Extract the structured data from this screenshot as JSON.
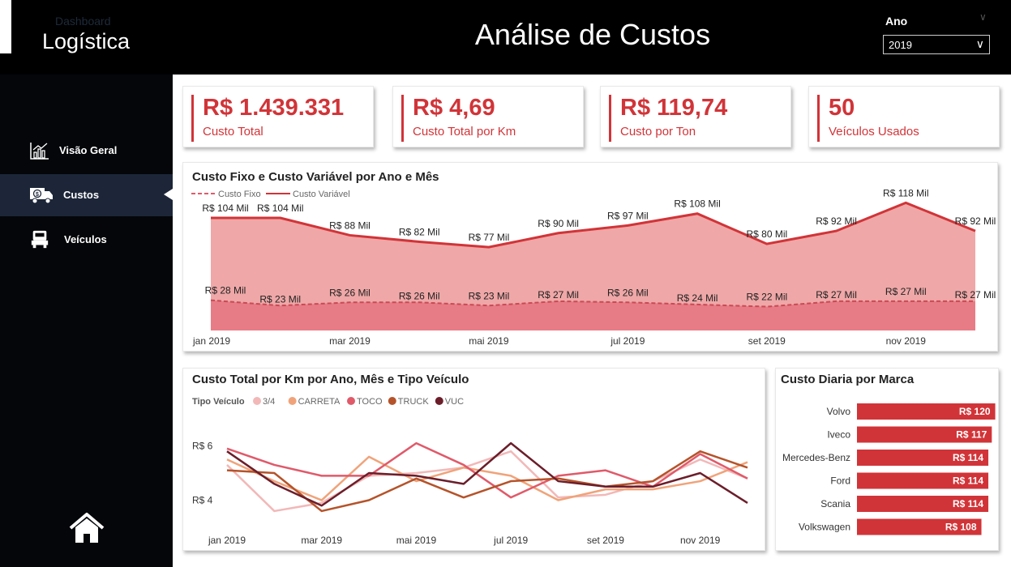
{
  "brand": {
    "small": "Dashboard",
    "big": "Logística"
  },
  "title": "Análise de Custos",
  "year_filter": {
    "label": "Ano",
    "value": "2019"
  },
  "colors": {
    "accent": "#d13438",
    "area": "#efa7a7",
    "sidebar_active": "#1c2638"
  },
  "nav": [
    {
      "label": "Visão Geral",
      "icon": "bar-chart-icon"
    },
    {
      "label": "Custos",
      "icon": "money-truck-icon"
    },
    {
      "label": "Veículos",
      "icon": "truck-icon"
    }
  ],
  "kpis": [
    {
      "value": "R$ 1.439.331",
      "label": "Custo Total"
    },
    {
      "value": "R$ 4,69",
      "label": "Custo Total por Km"
    },
    {
      "value": "R$ 119,74",
      "label": "Custo por Ton"
    },
    {
      "value": "50",
      "label": "Veículos Usados"
    }
  ],
  "chart_data": [
    {
      "type": "area",
      "title": "Custo Fixo e Custo Variável por Ano e Mês",
      "legend": [
        "Custo Fixo",
        "Custo Variável"
      ],
      "x": [
        "jan 2019",
        "fev 2019",
        "mar 2019",
        "abr 2019",
        "mai 2019",
        "jun 2019",
        "jul 2019",
        "ago 2019",
        "set 2019",
        "out 2019",
        "nov 2019",
        "dez 2019"
      ],
      "x_tick_labels": [
        "jan 2019",
        "mar 2019",
        "mai 2019",
        "jul 2019",
        "set 2019",
        "nov 2019"
      ],
      "series": [
        {
          "name": "Custo Variável",
          "values": [
            104,
            104,
            88,
            82,
            77,
            90,
            97,
            108,
            80,
            92,
            118,
            92
          ],
          "labels": [
            "R$ 104 Mil",
            "R$ 104 Mil",
            "R$ 88 Mil",
            "R$ 82 Mil",
            "R$ 77 Mil",
            "R$ 90 Mil",
            "R$ 97 Mil",
            "R$ 108 Mil",
            "R$ 80 Mil",
            "R$ 92 Mil",
            "R$ 118 Mil",
            "R$ 92 Mil"
          ]
        },
        {
          "name": "Custo Fixo",
          "values": [
            28,
            23,
            26,
            26,
            23,
            27,
            26,
            24,
            22,
            27,
            27,
            27
          ],
          "labels": [
            "R$ 28 Mil",
            "R$ 23 Mil",
            "R$ 26 Mil",
            "R$ 26 Mil",
            "R$ 23 Mil",
            "R$ 27 Mil",
            "R$ 26 Mil",
            "R$ 24 Mil",
            "R$ 22 Mil",
            "R$ 27 Mil",
            "R$ 27 Mil",
            "R$ 27 Mil"
          ]
        }
      ],
      "ylim": [
        0,
        125
      ]
    },
    {
      "type": "line",
      "title": "Custo Total por Km por Ano, Mês e Tipo Veículo",
      "legend_title": "Tipo Veículo",
      "x": [
        "jan 2019",
        "fev 2019",
        "mar 2019",
        "abr 2019",
        "mai 2019",
        "jun 2019",
        "jul 2019",
        "ago 2019",
        "set 2019",
        "out 2019",
        "nov 2019",
        "dez 2019"
      ],
      "x_tick_labels": [
        "jan 2019",
        "mar 2019",
        "mai 2019",
        "jul 2019",
        "set 2019",
        "nov 2019"
      ],
      "y_tick_labels": [
        "R$ 6",
        "R$ 4"
      ],
      "y_ticks": [
        6,
        4
      ],
      "ylim": [
        3.3,
        6.7
      ],
      "series": [
        {
          "name": "3/4",
          "color": "#f2b8b8",
          "values": [
            5.3,
            3.6,
            3.9,
            4.9,
            5.0,
            5.2,
            5.8,
            4.1,
            4.2,
            4.7,
            5.5,
            4.8
          ]
        },
        {
          "name": "CARRETA",
          "color": "#f0a37a",
          "values": [
            5.5,
            4.7,
            4.0,
            5.6,
            4.7,
            5.2,
            4.9,
            4.0,
            4.4,
            4.4,
            4.7,
            5.4
          ]
        },
        {
          "name": "TOCO",
          "color": "#e05a6a",
          "values": [
            5.9,
            5.3,
            4.9,
            4.9,
            6.1,
            5.3,
            4.1,
            4.9,
            5.1,
            4.5,
            5.7,
            4.8
          ]
        },
        {
          "name": "TRUCK",
          "color": "#b5532a",
          "values": [
            5.1,
            5.0,
            3.6,
            4.0,
            4.8,
            4.1,
            4.7,
            4.8,
            4.5,
            4.7,
            5.8,
            5.2
          ]
        },
        {
          "name": "VUC",
          "color": "#6b1e2a",
          "values": [
            5.8,
            4.6,
            3.8,
            5.0,
            4.9,
            4.6,
            6.1,
            4.7,
            4.5,
            4.5,
            5.0,
            3.9
          ]
        }
      ]
    },
    {
      "type": "bar",
      "title": "Custo Diaria por Marca",
      "categories": [
        "Volvo",
        "Iveco",
        "Mercedes-Benz",
        "Ford",
        "Scania",
        "Volkswagen"
      ],
      "values": [
        120,
        117,
        114,
        114,
        114,
        108
      ],
      "labels": [
        "R$ 120",
        "R$ 117",
        "R$ 114",
        "R$ 114",
        "R$ 114",
        "R$ 108"
      ],
      "xlim": [
        0,
        121
      ]
    }
  ]
}
